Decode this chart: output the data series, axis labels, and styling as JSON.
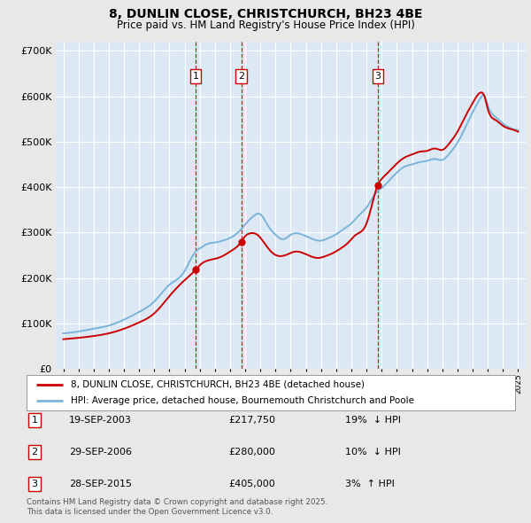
{
  "title_line1": "8, DUNLIN CLOSE, CHRISTCHURCH, BH23 4BE",
  "title_line2": "Price paid vs. HM Land Registry's House Price Index (HPI)",
  "fig_bg_color": "#e8e8e8",
  "plot_bg_color": "#dce9f5",
  "hpi_line_color": "#7ab4d8",
  "price_line_color": "#cc0000",
  "marker_color": "#cc0000",
  "vline_color": "#cc0000",
  "grid_color": "#ffffff",
  "ylim": [
    0,
    720000
  ],
  "yticks": [
    0,
    100000,
    200000,
    300000,
    400000,
    500000,
    600000,
    700000
  ],
  "ytick_labels": [
    "£0",
    "£100K",
    "£200K",
    "£300K",
    "£400K",
    "£500K",
    "£600K",
    "£700K"
  ],
  "transactions": [
    {
      "label": "1",
      "date": "19-SEP-2003",
      "price": 217750,
      "pct": "19%",
      "dir": "↓",
      "x_year": 2003.72
    },
    {
      "label": "2",
      "date": "29-SEP-2006",
      "price": 280000,
      "pct": "10%",
      "dir": "↓",
      "x_year": 2006.75
    },
    {
      "label": "3",
      "date": "28-SEP-2015",
      "price": 405000,
      "pct": "3%",
      "dir": "↑",
      "x_year": 2015.75
    }
  ],
  "legend_entries": [
    "8, DUNLIN CLOSE, CHRISTCHURCH, BH23 4BE (detached house)",
    "HPI: Average price, detached house, Bournemouth Christchurch and Poole"
  ],
  "footnote": "Contains HM Land Registry data © Crown copyright and database right 2025.\nThis data is licensed under the Open Government Licence v3.0.",
  "xlim_start": 1994.5,
  "xlim_end": 2025.5,
  "hpi_keypoints": [
    [
      1995.0,
      78000
    ],
    [
      1996.0,
      82000
    ],
    [
      1997.0,
      88000
    ],
    [
      1998.0,
      95000
    ],
    [
      1999.0,
      108000
    ],
    [
      2000.0,
      125000
    ],
    [
      2001.0,
      148000
    ],
    [
      2002.0,
      185000
    ],
    [
      2003.0,
      215000
    ],
    [
      2003.72,
      258000
    ],
    [
      2004.0,
      265000
    ],
    [
      2004.5,
      275000
    ],
    [
      2005.0,
      278000
    ],
    [
      2005.5,
      282000
    ],
    [
      2006.0,
      288000
    ],
    [
      2006.75,
      308000
    ],
    [
      2007.0,
      318000
    ],
    [
      2007.5,
      335000
    ],
    [
      2008.0,
      340000
    ],
    [
      2008.5,
      315000
    ],
    [
      2009.0,
      295000
    ],
    [
      2009.5,
      285000
    ],
    [
      2010.0,
      295000
    ],
    [
      2010.5,
      298000
    ],
    [
      2011.0,
      292000
    ],
    [
      2011.5,
      285000
    ],
    [
      2012.0,
      282000
    ],
    [
      2012.5,
      288000
    ],
    [
      2013.0,
      296000
    ],
    [
      2013.5,
      308000
    ],
    [
      2014.0,
      320000
    ],
    [
      2014.5,
      338000
    ],
    [
      2015.0,
      355000
    ],
    [
      2015.75,
      392000
    ],
    [
      2016.0,
      398000
    ],
    [
      2016.5,
      415000
    ],
    [
      2017.0,
      432000
    ],
    [
      2017.5,
      445000
    ],
    [
      2018.0,
      450000
    ],
    [
      2018.5,
      455000
    ],
    [
      2019.0,
      458000
    ],
    [
      2019.5,
      462000
    ],
    [
      2020.0,
      460000
    ],
    [
      2020.5,
      475000
    ],
    [
      2021.0,
      498000
    ],
    [
      2021.5,
      530000
    ],
    [
      2022.0,
      565000
    ],
    [
      2022.5,
      595000
    ],
    [
      2022.8,
      600000
    ],
    [
      2023.0,
      580000
    ],
    [
      2023.5,
      555000
    ],
    [
      2024.0,
      540000
    ],
    [
      2024.5,
      530000
    ],
    [
      2025.0,
      525000
    ]
  ],
  "price_keypoints": [
    [
      1995.0,
      65000
    ],
    [
      1996.0,
      68000
    ],
    [
      1997.0,
      72000
    ],
    [
      1998.0,
      78000
    ],
    [
      1999.0,
      88000
    ],
    [
      2000.0,
      102000
    ],
    [
      2001.0,
      122000
    ],
    [
      2002.0,
      160000
    ],
    [
      2003.0,
      195000
    ],
    [
      2003.72,
      217750
    ],
    [
      2004.0,
      228000
    ],
    [
      2004.5,
      238000
    ],
    [
      2005.0,
      242000
    ],
    [
      2005.5,
      248000
    ],
    [
      2006.0,
      258000
    ],
    [
      2006.75,
      280000
    ],
    [
      2007.0,
      292000
    ],
    [
      2007.3,
      298000
    ],
    [
      2007.8,
      295000
    ],
    [
      2008.3,
      275000
    ],
    [
      2008.8,
      255000
    ],
    [
      2009.3,
      248000
    ],
    [
      2009.8,
      252000
    ],
    [
      2010.3,
      258000
    ],
    [
      2010.8,
      255000
    ],
    [
      2011.3,
      248000
    ],
    [
      2011.8,
      244000
    ],
    [
      2012.3,
      248000
    ],
    [
      2012.8,
      255000
    ],
    [
      2013.3,
      265000
    ],
    [
      2013.8,
      278000
    ],
    [
      2014.3,
      295000
    ],
    [
      2015.0,
      320000
    ],
    [
      2015.75,
      405000
    ],
    [
      2016.0,
      418000
    ],
    [
      2016.5,
      435000
    ],
    [
      2017.0,
      452000
    ],
    [
      2017.5,
      465000
    ],
    [
      2018.0,
      472000
    ],
    [
      2018.5,
      478000
    ],
    [
      2019.0,
      480000
    ],
    [
      2019.5,
      485000
    ],
    [
      2020.0,
      482000
    ],
    [
      2020.5,
      498000
    ],
    [
      2021.0,
      522000
    ],
    [
      2021.5,
      555000
    ],
    [
      2022.0,
      585000
    ],
    [
      2022.5,
      608000
    ],
    [
      2022.8,
      598000
    ],
    [
      2023.0,
      572000
    ],
    [
      2023.5,
      548000
    ],
    [
      2024.0,
      535000
    ],
    [
      2024.5,
      528000
    ],
    [
      2025.0,
      522000
    ]
  ]
}
